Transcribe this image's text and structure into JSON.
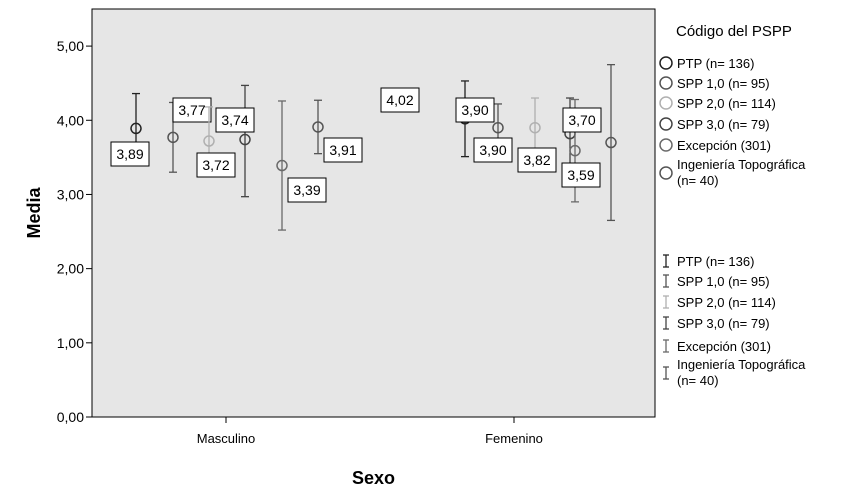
{
  "chart_data": {
    "type": "scatter",
    "subtype": "error-bar",
    "xlabel": "Sexo",
    "ylabel": "Media",
    "ylim": [
      0,
      5.5
    ],
    "grid": false,
    "y_ticks": [
      "0,00",
      "1,00",
      "2,00",
      "3,00",
      "4,00",
      "5,00"
    ],
    "y_tick_values": [
      0,
      1,
      2,
      3,
      4,
      5
    ],
    "categories": [
      "Masculino",
      "Femenino"
    ],
    "legend": {
      "title": "Código del PSPP",
      "placement": "right",
      "marker_entries": [
        "PTP (n= 136)",
        "SPP 1,0 (n= 95)",
        "SPP 2,0 (n= 114)",
        "SPP 3,0 (n= 79)",
        "Excepción (301)",
        "Ingeniería Topográfica (n= 40)"
      ],
      "errorbar_entries": [
        "PTP (n= 136)",
        "SPP 1,0 (n= 95)",
        "SPP 2,0 (n= 114)",
        "SPP 3,0 (n= 79)",
        "Excepción (301)",
        "Ingeniería Topográfica (n= 40)"
      ]
    },
    "series": [
      {
        "name": "PTP (n= 136)",
        "color": "#222222",
        "values": [
          3.89,
          4.02
        ],
        "lower": [
          3.42,
          3.51
        ],
        "upper": [
          4.36,
          4.53
        ],
        "labels": [
          "3,89",
          "4,02"
        ]
      },
      {
        "name": "SPP 1,0 (n= 95)",
        "color": "#555555",
        "values": [
          3.77,
          3.9
        ],
        "lower": [
          3.3,
          3.58
        ],
        "upper": [
          4.24,
          4.22
        ],
        "labels": [
          "3,77",
          "3,90"
        ]
      },
      {
        "name": "SPP 2,0 (n= 114)",
        "color": "#b0b0b0",
        "values": [
          3.72,
          3.9
        ],
        "lower": [
          3.28,
          3.5
        ],
        "upper": [
          4.18,
          4.3
        ],
        "labels": [
          "3,72",
          "3,90"
        ]
      },
      {
        "name": "SPP 3,0 (n= 79)",
        "color": "#444444",
        "values": [
          3.74,
          3.82
        ],
        "lower": [
          2.97,
          3.33
        ],
        "upper": [
          4.47,
          4.3
        ],
        "labels": [
          "3,74",
          "3,82"
        ]
      },
      {
        "name": "Excepción (301)",
        "color": "#6a6a6a",
        "values": [
          3.39,
          3.59
        ],
        "lower": [
          2.52,
          2.9
        ],
        "upper": [
          4.26,
          4.28
        ],
        "labels": [
          "3,39",
          "3,59"
        ]
      },
      {
        "name": "Ingeniería Topográfica (n= 40)",
        "color": "#555555",
        "values": [
          3.91,
          3.7
        ],
        "lower": [
          3.55,
          2.65
        ],
        "upper": [
          4.27,
          4.75
        ],
        "labels": [
          "3,91",
          "3,70"
        ]
      }
    ]
  }
}
